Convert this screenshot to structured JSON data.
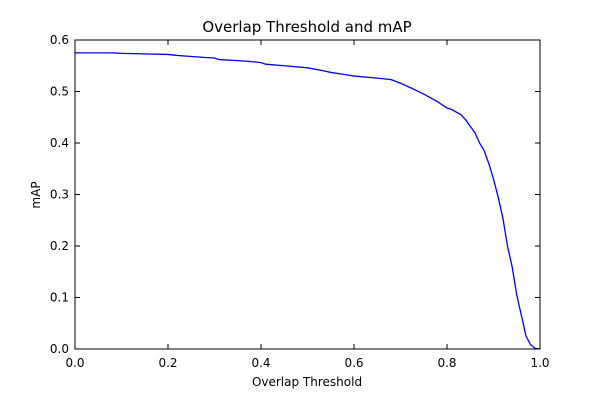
{
  "chart_data": {
    "type": "line",
    "title": "Overlap Threshold and mAP",
    "xlabel": "Overlap Threshold",
    "ylabel": "mAP",
    "xlim": [
      0.0,
      1.0
    ],
    "ylim": [
      0.0,
      0.6
    ],
    "x_ticks": [
      "0.0",
      "0.2",
      "0.4",
      "0.6",
      "0.8",
      "1.0"
    ],
    "y_ticks": [
      "0.0",
      "0.1",
      "0.2",
      "0.3",
      "0.4",
      "0.5",
      "0.6"
    ],
    "grid": false,
    "series": [
      {
        "color": "#0000ff",
        "x": [
          0.0,
          0.05,
          0.08,
          0.1,
          0.15,
          0.2,
          0.22,
          0.25,
          0.28,
          0.3,
          0.31,
          0.35,
          0.38,
          0.4,
          0.41,
          0.45,
          0.5,
          0.53,
          0.55,
          0.58,
          0.6,
          0.65,
          0.68,
          0.7,
          0.72,
          0.75,
          0.78,
          0.8,
          0.81,
          0.83,
          0.84,
          0.86,
          0.87,
          0.88,
          0.89,
          0.9,
          0.91,
          0.92,
          0.93,
          0.94,
          0.95,
          0.96,
          0.97,
          0.98,
          0.99,
          1.0
        ],
        "y": [
          0.575,
          0.575,
          0.575,
          0.574,
          0.573,
          0.572,
          0.57,
          0.568,
          0.566,
          0.565,
          0.562,
          0.56,
          0.558,
          0.556,
          0.553,
          0.55,
          0.546,
          0.541,
          0.537,
          0.533,
          0.53,
          0.526,
          0.523,
          0.516,
          0.508,
          0.495,
          0.48,
          0.468,
          0.465,
          0.455,
          0.445,
          0.42,
          0.4,
          0.385,
          0.36,
          0.33,
          0.295,
          0.255,
          0.2,
          0.16,
          0.105,
          0.065,
          0.025,
          0.008,
          0.001,
          0.0
        ]
      }
    ]
  }
}
